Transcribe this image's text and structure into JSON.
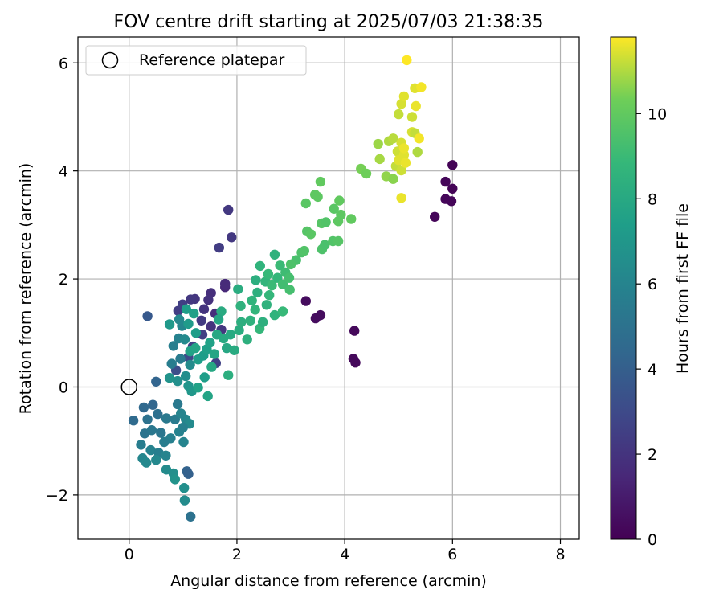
{
  "chart_data": {
    "type": "scatter",
    "title": "FOV centre drift starting at 2025/07/03 21:38:35",
    "xlabel": "Angular distance from reference (arcmin)",
    "ylabel": "Rotation from reference (arcmin)",
    "xlim": [
      -0.95,
      8.35
    ],
    "ylim": [
      -2.82,
      6.48
    ],
    "xticks": [
      0,
      2,
      4,
      6,
      8
    ],
    "yticks": [
      -2,
      0,
      2,
      4,
      6
    ],
    "xtick_labels": [
      "0",
      "2",
      "4",
      "6",
      "8"
    ],
    "ytick_labels": [
      "−2",
      "0",
      "2",
      "4",
      "6"
    ],
    "grid": true,
    "legend": {
      "position": "top-left",
      "label": "Reference platepar"
    },
    "reference_point": {
      "x": 0,
      "y": 0
    },
    "colorbar": {
      "label": "Hours from first FF file",
      "colormap": "viridis",
      "range": [
        0,
        11.8
      ],
      "ticks": [
        0,
        2,
        4,
        6,
        8,
        10
      ],
      "tick_labels": [
        "0",
        "2",
        "4",
        "6",
        "8",
        "10"
      ]
    },
    "points": [
      {
        "x": 6.0,
        "y": 4.11,
        "h": 0.1
      },
      {
        "x": 6.0,
        "y": 3.67,
        "h": 0.1
      },
      {
        "x": 5.98,
        "y": 3.44,
        "h": 0.2
      },
      {
        "x": 5.87,
        "y": 3.48,
        "h": 0.2
      },
      {
        "x": 5.87,
        "y": 3.8,
        "h": 0.2
      },
      {
        "x": 5.67,
        "y": 3.15,
        "h": 0.2
      },
      {
        "x": 4.2,
        "y": 0.45,
        "h": 0.3
      },
      {
        "x": 4.16,
        "y": 0.52,
        "h": 0.3
      },
      {
        "x": 4.18,
        "y": 1.04,
        "h": 0.3
      },
      {
        "x": 3.55,
        "y": 1.33,
        "h": 0.4
      },
      {
        "x": 3.46,
        "y": 1.27,
        "h": 0.4
      },
      {
        "x": 3.28,
        "y": 1.59,
        "h": 0.4
      },
      {
        "x": 1.9,
        "y": 2.77,
        "h": 2.2
      },
      {
        "x": 1.84,
        "y": 3.28,
        "h": 2.2
      },
      {
        "x": 1.67,
        "y": 2.58,
        "h": 2.4
      },
      {
        "x": 1.78,
        "y": 1.85,
        "h": 1.5
      },
      {
        "x": 1.78,
        "y": 1.91,
        "h": 1.6
      },
      {
        "x": 1.52,
        "y": 1.74,
        "h": 1.8
      },
      {
        "x": 1.47,
        "y": 1.61,
        "h": 1.9
      },
      {
        "x": 1.39,
        "y": 1.44,
        "h": 2.0
      },
      {
        "x": 1.22,
        "y": 1.63,
        "h": 2.1
      },
      {
        "x": 1.14,
        "y": 1.62,
        "h": 2.2
      },
      {
        "x": 0.91,
        "y": 1.41,
        "h": 2.4
      },
      {
        "x": 0.99,
        "y": 1.53,
        "h": 2.5
      },
      {
        "x": 1.34,
        "y": 1.23,
        "h": 2.3
      },
      {
        "x": 1.6,
        "y": 1.36,
        "h": 1.7
      },
      {
        "x": 1.52,
        "y": 1.12,
        "h": 1.9
      },
      {
        "x": 1.18,
        "y": 0.75,
        "h": 2.6
      },
      {
        "x": 1.61,
        "y": 0.44,
        "h": 2.6
      },
      {
        "x": 1.71,
        "y": 1.06,
        "h": 2.1
      },
      {
        "x": 1.36,
        "y": 0.97,
        "h": 2.5
      },
      {
        "x": 0.87,
        "y": 0.31,
        "h": 3.2
      },
      {
        "x": 1.1,
        "y": 0.55,
        "h": 3.0
      },
      {
        "x": 0.34,
        "y": 1.31,
        "h": 3.7
      },
      {
        "x": 0.5,
        "y": 0.1,
        "h": 4.3
      },
      {
        "x": 0.08,
        "y": -0.62,
        "h": 4.6
      },
      {
        "x": 0.27,
        "y": -0.38,
        "h": 4.5
      },
      {
        "x": 0.44,
        "y": -0.33,
        "h": 4.4
      },
      {
        "x": 0.34,
        "y": -0.6,
        "h": 5.0
      },
      {
        "x": 0.53,
        "y": -0.5,
        "h": 4.9
      },
      {
        "x": 0.59,
        "y": -0.85,
        "h": 5.2
      },
      {
        "x": 0.69,
        "y": -0.58,
        "h": 5.4
      },
      {
        "x": 0.85,
        "y": -0.6,
        "h": 5.5
      },
      {
        "x": 0.9,
        "y": -0.32,
        "h": 5.4
      },
      {
        "x": 0.77,
        "y": -0.95,
        "h": 5.8
      },
      {
        "x": 0.93,
        "y": -0.83,
        "h": 5.9
      },
      {
        "x": 1.01,
        "y": -1.02,
        "h": 6.0
      },
      {
        "x": 1.05,
        "y": -0.6,
        "h": 6.1
      },
      {
        "x": 1.12,
        "y": -0.68,
        "h": 6.3
      },
      {
        "x": 0.29,
        "y": -0.86,
        "h": 5.1
      },
      {
        "x": 0.42,
        "y": -0.8,
        "h": 5.3
      },
      {
        "x": 0.22,
        "y": -1.07,
        "h": 5.6
      },
      {
        "x": 0.4,
        "y": -1.17,
        "h": 5.9
      },
      {
        "x": 0.55,
        "y": -1.22,
        "h": 5.7
      },
      {
        "x": 0.65,
        "y": -1.02,
        "h": 5.6
      },
      {
        "x": 0.68,
        "y": -1.27,
        "h": 6.0
      },
      {
        "x": 0.25,
        "y": -1.32,
        "h": 6.1
      },
      {
        "x": 0.32,
        "y": -1.4,
        "h": 6.2
      },
      {
        "x": 0.5,
        "y": -1.35,
        "h": 6.2
      },
      {
        "x": 0.69,
        "y": -1.53,
        "h": 6.4
      },
      {
        "x": 0.82,
        "y": -1.6,
        "h": 6.6
      },
      {
        "x": 0.85,
        "y": -1.71,
        "h": 6.8
      },
      {
        "x": 1.07,
        "y": -1.56,
        "h": 4.2
      },
      {
        "x": 1.1,
        "y": -1.61,
        "h": 4.1
      },
      {
        "x": 1.02,
        "y": -1.87,
        "h": 6.6
      },
      {
        "x": 1.03,
        "y": -2.1,
        "h": 6.4
      },
      {
        "x": 1.14,
        "y": -2.4,
        "h": 5.0
      },
      {
        "x": 0.96,
        "y": -0.49,
        "h": 6.0
      },
      {
        "x": 1.0,
        "y": -0.75,
        "h": 5.8
      },
      {
        "x": 0.79,
        "y": 0.43,
        "h": 5.6
      },
      {
        "x": 0.95,
        "y": 0.52,
        "h": 5.5
      },
      {
        "x": 0.82,
        "y": 0.76,
        "h": 5.7
      },
      {
        "x": 0.92,
        "y": 0.9,
        "h": 5.9
      },
      {
        "x": 0.98,
        "y": 1.13,
        "h": 6.1
      },
      {
        "x": 0.93,
        "y": 1.25,
        "h": 6.2
      },
      {
        "x": 1.03,
        "y": 0.88,
        "h": 6.3
      },
      {
        "x": 1.13,
        "y": 0.41,
        "h": 6.4
      },
      {
        "x": 1.05,
        "y": 0.2,
        "h": 6.5
      },
      {
        "x": 0.9,
        "y": 0.11,
        "h": 6.6
      },
      {
        "x": 0.75,
        "y": 0.17,
        "h": 6.8
      },
      {
        "x": 1.1,
        "y": 0.02,
        "h": 6.9
      },
      {
        "x": 1.16,
        "y": -0.08,
        "h": 7.0
      },
      {
        "x": 0.75,
        "y": 1.16,
        "h": 7.1
      },
      {
        "x": 1.1,
        "y": 1.17,
        "h": 7.2
      },
      {
        "x": 1.24,
        "y": 1.0,
        "h": 7.3
      },
      {
        "x": 1.06,
        "y": 1.44,
        "h": 7.4
      },
      {
        "x": 1.2,
        "y": 1.36,
        "h": 7.5
      },
      {
        "x": 1.13,
        "y": 0.66,
        "h": 7.6
      },
      {
        "x": 1.23,
        "y": 0.72,
        "h": 7.7
      },
      {
        "x": 1.28,
        "y": 0.51,
        "h": 7.4
      },
      {
        "x": 1.38,
        "y": 0.58,
        "h": 7.3
      },
      {
        "x": 1.44,
        "y": 0.7,
        "h": 7.5
      },
      {
        "x": 1.5,
        "y": 0.82,
        "h": 7.6
      },
      {
        "x": 1.58,
        "y": 0.61,
        "h": 7.8
      },
      {
        "x": 1.63,
        "y": 0.97,
        "h": 7.9
      },
      {
        "x": 1.75,
        "y": 0.9,
        "h": 8.0
      },
      {
        "x": 1.81,
        "y": 0.72,
        "h": 7.9
      },
      {
        "x": 1.88,
        "y": 0.97,
        "h": 8.0
      },
      {
        "x": 1.95,
        "y": 0.68,
        "h": 8.1
      },
      {
        "x": 1.71,
        "y": 1.4,
        "h": 8.1
      },
      {
        "x": 1.66,
        "y": 1.25,
        "h": 7.8
      },
      {
        "x": 1.53,
        "y": 0.37,
        "h": 7.9
      },
      {
        "x": 1.46,
        "y": -0.17,
        "h": 7.7
      },
      {
        "x": 1.28,
        "y": -0.01,
        "h": 7.6
      },
      {
        "x": 1.4,
        "y": 0.18,
        "h": 7.4
      },
      {
        "x": 1.84,
        "y": 0.22,
        "h": 8.3
      },
      {
        "x": 2.04,
        "y": 1.05,
        "h": 8.2
      },
      {
        "x": 2.08,
        "y": 1.2,
        "h": 8.3
      },
      {
        "x": 2.19,
        "y": 0.88,
        "h": 8.4
      },
      {
        "x": 2.07,
        "y": 1.5,
        "h": 8.5
      },
      {
        "x": 2.02,
        "y": 1.81,
        "h": 8.2
      },
      {
        "x": 2.28,
        "y": 1.6,
        "h": 8.6
      },
      {
        "x": 2.34,
        "y": 1.43,
        "h": 8.7
      },
      {
        "x": 2.25,
        "y": 1.23,
        "h": 8.5
      },
      {
        "x": 2.42,
        "y": 1.08,
        "h": 8.8
      },
      {
        "x": 2.48,
        "y": 1.2,
        "h": 8.4
      },
      {
        "x": 2.35,
        "y": 1.98,
        "h": 8.3
      },
      {
        "x": 2.43,
        "y": 2.24,
        "h": 8.6
      },
      {
        "x": 2.53,
        "y": 1.95,
        "h": 8.7
      },
      {
        "x": 2.6,
        "y": 1.7,
        "h": 8.8
      },
      {
        "x": 2.58,
        "y": 2.09,
        "h": 8.9
      },
      {
        "x": 2.65,
        "y": 1.88,
        "h": 9.0
      },
      {
        "x": 2.7,
        "y": 2.45,
        "h": 8.5
      },
      {
        "x": 2.75,
        "y": 2.02,
        "h": 8.8
      },
      {
        "x": 2.8,
        "y": 2.25,
        "h": 9.0
      },
      {
        "x": 2.85,
        "y": 1.9,
        "h": 9.2
      },
      {
        "x": 2.9,
        "y": 2.12,
        "h": 9.1
      },
      {
        "x": 2.7,
        "y": 1.33,
        "h": 8.6
      },
      {
        "x": 2.85,
        "y": 1.4,
        "h": 8.9
      },
      {
        "x": 2.55,
        "y": 1.52,
        "h": 8.5
      },
      {
        "x": 2.38,
        "y": 1.75,
        "h": 8.4
      },
      {
        "x": 2.97,
        "y": 2.02,
        "h": 9.3
      },
      {
        "x": 2.98,
        "y": 1.8,
        "h": 9.3
      },
      {
        "x": 3.1,
        "y": 2.35,
        "h": 9.4
      },
      {
        "x": 3.0,
        "y": 2.27,
        "h": 9.5
      },
      {
        "x": 3.2,
        "y": 2.49,
        "h": 9.5
      },
      {
        "x": 3.25,
        "y": 2.52,
        "h": 9.6
      },
      {
        "x": 3.3,
        "y": 2.88,
        "h": 9.7
      },
      {
        "x": 3.37,
        "y": 2.83,
        "h": 9.8
      },
      {
        "x": 3.28,
        "y": 3.4,
        "h": 9.8
      },
      {
        "x": 3.45,
        "y": 3.56,
        "h": 9.9
      },
      {
        "x": 3.5,
        "y": 3.52,
        "h": 9.9
      },
      {
        "x": 3.55,
        "y": 3.8,
        "h": 10.0
      },
      {
        "x": 3.57,
        "y": 3.03,
        "h": 9.7
      },
      {
        "x": 3.65,
        "y": 3.05,
        "h": 9.6
      },
      {
        "x": 3.58,
        "y": 2.55,
        "h": 9.5
      },
      {
        "x": 3.63,
        "y": 2.63,
        "h": 9.4
      },
      {
        "x": 3.78,
        "y": 2.7,
        "h": 9.6
      },
      {
        "x": 3.88,
        "y": 2.7,
        "h": 9.7
      },
      {
        "x": 3.8,
        "y": 3.3,
        "h": 9.8
      },
      {
        "x": 3.88,
        "y": 3.07,
        "h": 9.9
      },
      {
        "x": 3.93,
        "y": 3.19,
        "h": 9.9
      },
      {
        "x": 3.9,
        "y": 3.45,
        "h": 10.0
      },
      {
        "x": 4.12,
        "y": 3.11,
        "h": 10.0
      },
      {
        "x": 4.3,
        "y": 4.04,
        "h": 10.4
      },
      {
        "x": 4.4,
        "y": 3.95,
        "h": 10.3
      },
      {
        "x": 4.62,
        "y": 4.5,
        "h": 10.8
      },
      {
        "x": 4.65,
        "y": 4.22,
        "h": 10.9
      },
      {
        "x": 4.82,
        "y": 4.55,
        "h": 11.0
      },
      {
        "x": 4.77,
        "y": 3.9,
        "h": 10.7
      },
      {
        "x": 4.9,
        "y": 3.85,
        "h": 10.6
      },
      {
        "x": 4.95,
        "y": 4.09,
        "h": 11.2
      },
      {
        "x": 4.9,
        "y": 4.6,
        "h": 11.1
      },
      {
        "x": 4.98,
        "y": 4.36,
        "h": 11.3
      },
      {
        "x": 5.05,
        "y": 4.52,
        "h": 11.4
      },
      {
        "x": 5.0,
        "y": 4.2,
        "h": 11.5
      },
      {
        "x": 5.05,
        "y": 4.01,
        "h": 11.3
      },
      {
        "x": 5.1,
        "y": 4.3,
        "h": 11.5
      },
      {
        "x": 5.13,
        "y": 4.15,
        "h": 11.6
      },
      {
        "x": 5.1,
        "y": 4.42,
        "h": 11.6
      },
      {
        "x": 5.0,
        "y": 5.05,
        "h": 11.2
      },
      {
        "x": 5.05,
        "y": 5.24,
        "h": 11.4
      },
      {
        "x": 5.1,
        "y": 5.38,
        "h": 11.5
      },
      {
        "x": 5.25,
        "y": 5.0,
        "h": 11.3
      },
      {
        "x": 5.25,
        "y": 4.72,
        "h": 11.4
      },
      {
        "x": 5.3,
        "y": 4.7,
        "h": 11.2
      },
      {
        "x": 5.32,
        "y": 5.2,
        "h": 11.6
      },
      {
        "x": 5.3,
        "y": 5.53,
        "h": 11.5
      },
      {
        "x": 5.42,
        "y": 5.55,
        "h": 11.7
      },
      {
        "x": 5.35,
        "y": 4.35,
        "h": 11.0
      },
      {
        "x": 5.38,
        "y": 4.6,
        "h": 11.7
      },
      {
        "x": 5.15,
        "y": 6.05,
        "h": 11.8
      },
      {
        "x": 5.05,
        "y": 3.5,
        "h": 11.6
      }
    ]
  }
}
